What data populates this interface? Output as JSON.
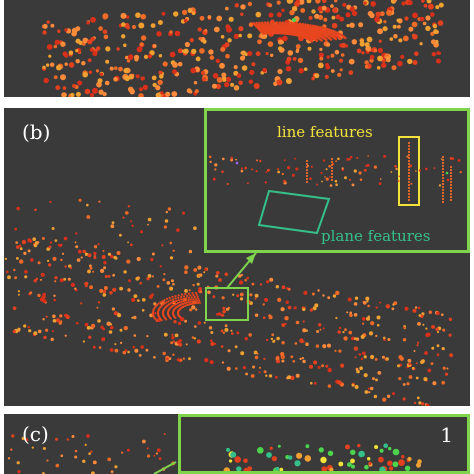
{
  "panels": {
    "b": {
      "label": "(b)"
    },
    "c": {
      "label": "(c)",
      "number": "1"
    }
  },
  "annotations": {
    "line_features": "line features",
    "plane_features": "plane features"
  },
  "colors": {
    "background": "#3a3a3a",
    "inset_border": "#7fd44c",
    "line_feature": "#f2e23a",
    "plane_feature": "#35c08a",
    "points_primary": "#e2401e",
    "points_secondary": "#f0a030"
  },
  "figure": {
    "description_kind": "lidar point cloud panels"
  }
}
